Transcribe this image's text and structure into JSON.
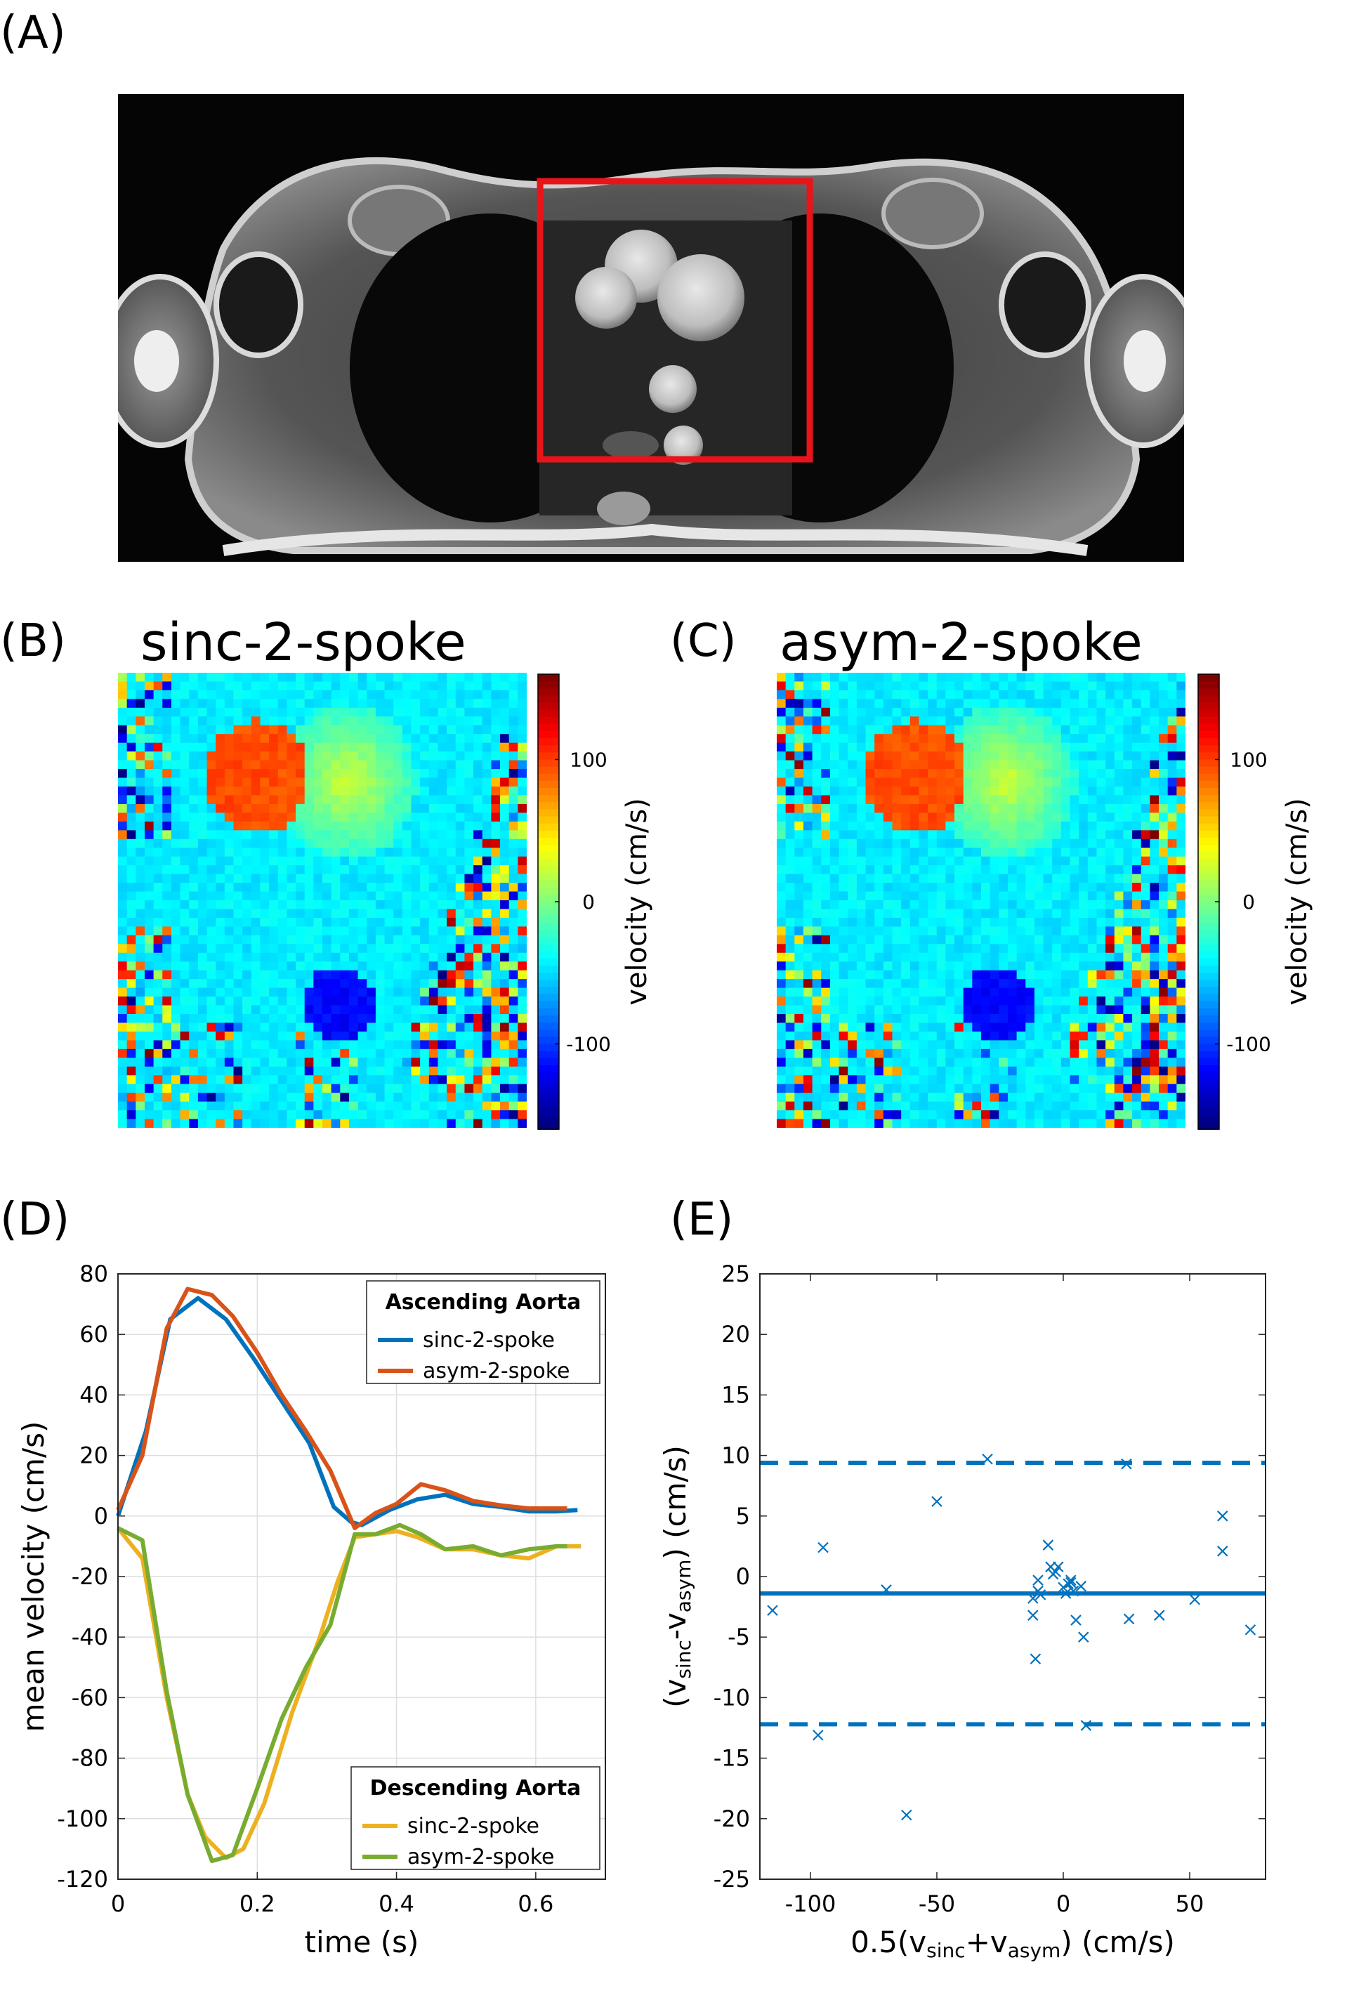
{
  "panels": {
    "A": {
      "label": "(A)"
    },
    "B": {
      "label": "(B)",
      "title": "sinc-2-spoke"
    },
    "C": {
      "label": "(C)",
      "title": "asym-2-spoke"
    },
    "D": {
      "label": "(D)"
    },
    "E": {
      "label": "(E)"
    }
  },
  "overlay_color": "#e8141a",
  "colorbar": {
    "label": "velocity (cm/s)",
    "ticks": [
      "100",
      "0",
      "-100"
    ],
    "range": [
      -160,
      160
    ]
  },
  "chart_data": [
    {
      "type": "line",
      "panel": "D",
      "xlabel": "time (s)",
      "ylabel": "mean velocity (cm/s)",
      "xlim": [
        0,
        0.7
      ],
      "ylim": [
        -120,
        80
      ],
      "xticks": [
        "0",
        "0.2",
        "0.4",
        "0.6"
      ],
      "yticks": [
        "80",
        "60",
        "40",
        "20",
        "0",
        "-20",
        "-40",
        "-60",
        "-80",
        "-100",
        "-120"
      ],
      "grid": true,
      "legends": [
        {
          "title": "Ascending Aorta",
          "placement": "top-right",
          "entries": [
            "sinc-2-spoke",
            "asym-2-spoke"
          ]
        },
        {
          "title": "Descending Aorta",
          "placement": "bottom-right",
          "entries": [
            "sinc-2-spoke",
            "asym-2-spoke"
          ]
        }
      ],
      "series": [
        {
          "name": "sinc-2-spoke",
          "group": "Ascending Aorta",
          "color": "#0072bd",
          "x": [
            0,
            0.04,
            0.075,
            0.115,
            0.155,
            0.195,
            0.235,
            0.275,
            0.31,
            0.335,
            0.35,
            0.39,
            0.43,
            0.47,
            0.51,
            0.55,
            0.59,
            0.63,
            0.66
          ],
          "y": [
            0,
            28,
            65,
            72,
            65,
            52,
            38,
            24,
            3,
            -2,
            -3,
            2,
            5.5,
            7,
            4,
            3,
            1.5,
            1.5,
            2
          ]
        },
        {
          "name": "asym-2-spoke",
          "group": "Ascending Aorta",
          "color": "#d95319",
          "x": [
            0,
            0.035,
            0.07,
            0.1,
            0.135,
            0.165,
            0.2,
            0.235,
            0.27,
            0.305,
            0.34,
            0.37,
            0.4,
            0.435,
            0.47,
            0.51,
            0.55,
            0.59,
            0.63,
            0.645
          ],
          "y": [
            2,
            20,
            62,
            75,
            73,
            66,
            54,
            40,
            28,
            15,
            -4,
            1,
            4,
            10.5,
            8.5,
            5,
            3.5,
            2.5,
            2.5,
            2.5
          ]
        },
        {
          "name": "sinc-2-spoke",
          "group": "Descending Aorta",
          "color": "#edb120",
          "x": [
            0,
            0.035,
            0.07,
            0.1,
            0.125,
            0.155,
            0.18,
            0.21,
            0.25,
            0.29,
            0.315,
            0.34,
            0.37,
            0.4,
            0.43,
            0.47,
            0.51,
            0.55,
            0.59,
            0.63,
            0.665
          ],
          "y": [
            -4,
            -14,
            -60,
            -92,
            -106,
            -113,
            -110,
            -95,
            -65,
            -40,
            -22,
            -7,
            -6,
            -5,
            -7,
            -11,
            -11,
            -13,
            -14,
            -10,
            -10
          ]
        },
        {
          "name": "asym-2-spoke",
          "group": "Descending Aorta",
          "color": "#77ac30",
          "x": [
            0,
            0.035,
            0.07,
            0.1,
            0.135,
            0.165,
            0.2,
            0.235,
            0.27,
            0.305,
            0.34,
            0.37,
            0.405,
            0.435,
            0.47,
            0.51,
            0.55,
            0.59,
            0.63,
            0.645
          ],
          "y": [
            -4,
            -8,
            -58,
            -92,
            -114,
            -112,
            -90,
            -67,
            -50,
            -36,
            -6,
            -6,
            -3,
            -6,
            -11,
            -10,
            -13,
            -11,
            -10,
            -10
          ]
        }
      ]
    },
    {
      "type": "scatter",
      "panel": "E",
      "xlabel_prefix": "0.5(v",
      "xlabel_sub1": "sinc",
      "xlabel_plus": "+v",
      "xlabel_sub2": "asym",
      "xlabel_suffix": ") (cm/s)",
      "ylabel_prefix": "(v",
      "ylabel_sub1": "sinc",
      "ylabel_minus": "-v",
      "ylabel_sub2": "asym",
      "ylabel_suffix": ") (cm/s)",
      "xlim": [
        -120,
        80
      ],
      "ylim": [
        -25,
        25
      ],
      "xticks": [
        "-100",
        "-50",
        "0",
        "50"
      ],
      "yticks": [
        "25",
        "20",
        "15",
        "10",
        "5",
        "0",
        "-5",
        "-10",
        "-15",
        "-20",
        "-25"
      ],
      "color": "#0072bd",
      "mean": -1.4,
      "loa": [
        9.4,
        -12.2
      ],
      "x": [
        -115,
        -97,
        -95,
        -70,
        -50,
        -30,
        -62,
        -12,
        -11,
        -10,
        -10,
        -12,
        -9,
        -6,
        -5,
        -4,
        -3,
        -2,
        0,
        1,
        2,
        3,
        4,
        5,
        7,
        8,
        9,
        3,
        25,
        26,
        38,
        52,
        63,
        63,
        74
      ],
      "y": [
        -2.8,
        -13.1,
        2.4,
        -1.1,
        6.2,
        9.7,
        -19.7,
        -3.2,
        -6.8,
        -0.3,
        -1.2,
        -1.8,
        -1.5,
        2.6,
        0.8,
        0.2,
        0.4,
        0.8,
        -0.9,
        -1.4,
        -0.6,
        -0.5,
        -1.2,
        -3.6,
        -0.8,
        -5.0,
        -12.3,
        -0.3,
        9.3,
        -3.5,
        -3.2,
        -1.9,
        5.0,
        2.1,
        -4.4
      ]
    }
  ]
}
